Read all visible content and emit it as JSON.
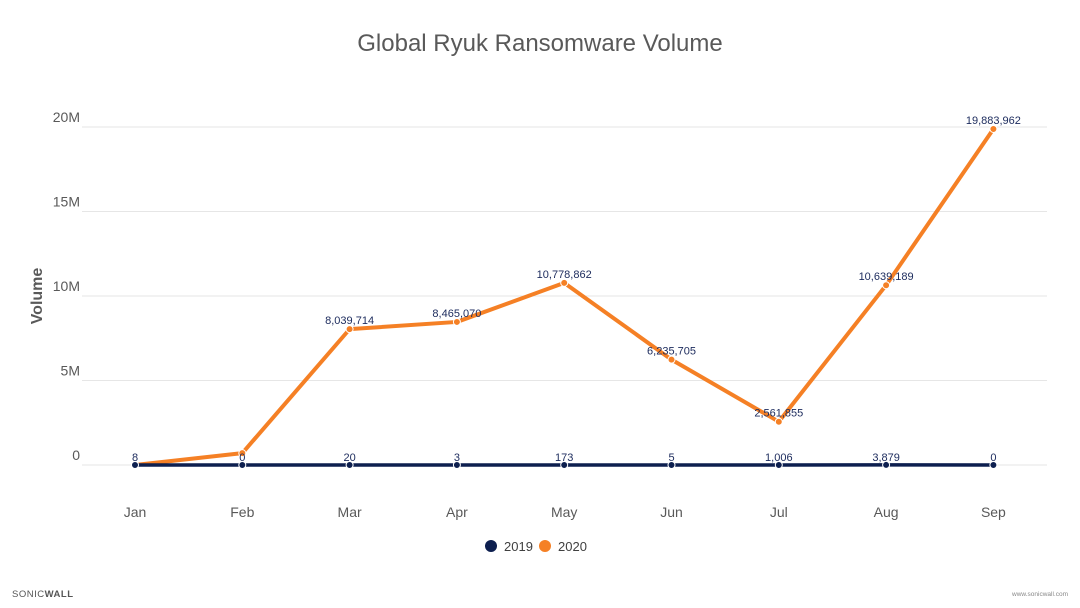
{
  "chart_data": {
    "type": "line",
    "title": "Global Ryuk Ransomware Volume",
    "xlabel": "",
    "ylabel": "Volume",
    "categories": [
      "Jan",
      "Feb",
      "Mar",
      "Apr",
      "May",
      "Jun",
      "Jul",
      "Aug",
      "Sep"
    ],
    "ylim": [
      0,
      20000000
    ],
    "yticks": [
      {
        "value": 0,
        "label": "0"
      },
      {
        "value": 5000000,
        "label": "5M"
      },
      {
        "value": 10000000,
        "label": "10M"
      },
      {
        "value": 15000000,
        "label": "15M"
      },
      {
        "value": 20000000,
        "label": "20M"
      }
    ],
    "grid": true,
    "legend_position": "bottom",
    "series": [
      {
        "name": "2019",
        "color": "#0d1f4f",
        "values": [
          8,
          0,
          20,
          3,
          173,
          5,
          1006,
          3879,
          0
        ],
        "labels": [
          "8",
          "0",
          "20",
          "3",
          "173",
          "5",
          "1,006",
          "3,879",
          "0"
        ]
      },
      {
        "name": "2020",
        "color": "#f58025",
        "values": [
          0,
          700000,
          8039714,
          8465070,
          10778862,
          6235705,
          2561855,
          10639189,
          19883962
        ],
        "labels": [
          "",
          "",
          "8,039,714",
          "8,465,070",
          "10,778,862",
          "6,235,705",
          "2,561,855",
          "10,639,189",
          "19,883,962"
        ]
      }
    ]
  },
  "branding": {
    "logo_sonic": "SONIC",
    "logo_wall": "WALL",
    "url": "www.sonicwall.com"
  }
}
